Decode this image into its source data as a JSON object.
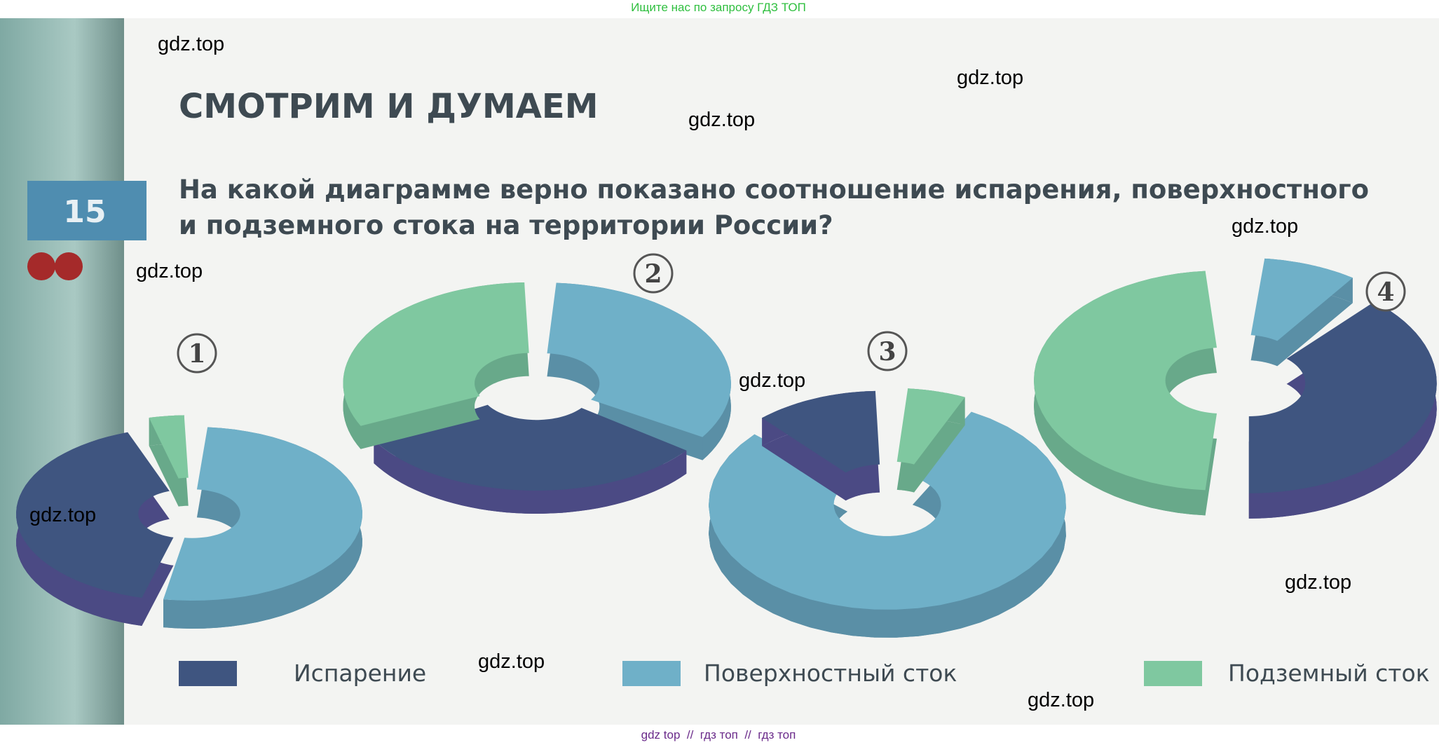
{
  "header": {
    "banner": "Ищите нас по запросу ГДЗ ТОП"
  },
  "title": "СМОТРИМ И ДУМАЕМ",
  "task": {
    "number": "15",
    "question_lines": [
      "На какой диаграмме верно показано соотношение испарения, поверхностного",
      "и подземного стока на территории России?"
    ]
  },
  "diagram_labels": [
    "1",
    "2",
    "3",
    "4"
  ],
  "legend": [
    "Испарение",
    "Поверхностный сток",
    "Подземный сток"
  ],
  "watermarks": [
    "gdz.top",
    "gdz.top",
    "gdz.top",
    "gdz.top",
    "gdz.top",
    "gdz.top",
    "gdz.top",
    "gdz.top",
    "gdz.top",
    "gdz.top"
  ],
  "footer": "gdz top  //  гдз топ  //  гдз топ"
}
